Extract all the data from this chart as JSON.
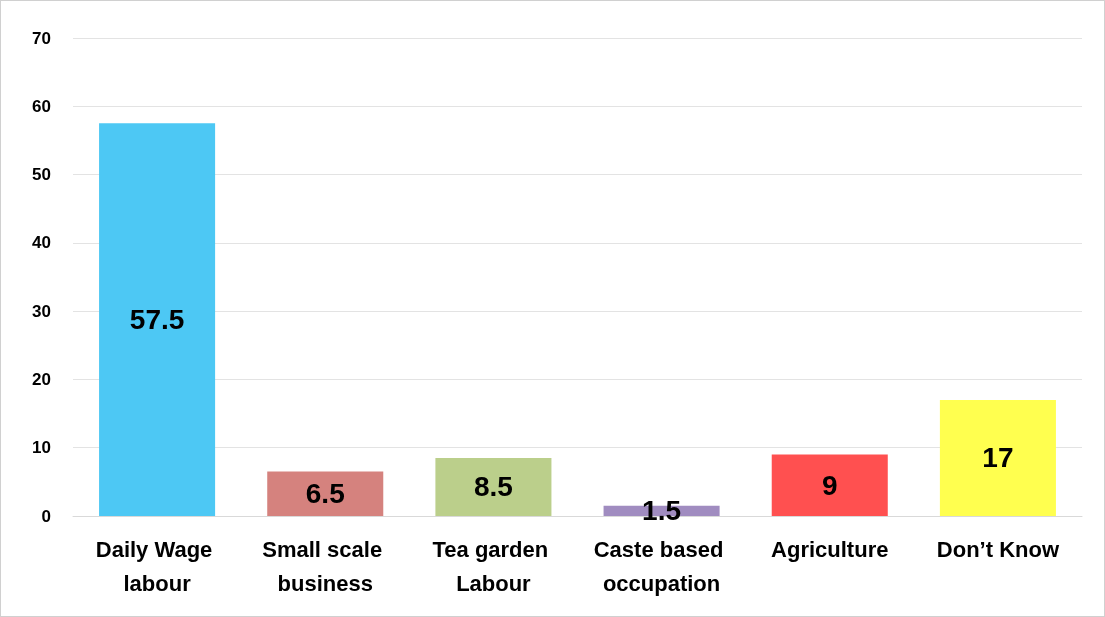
{
  "chart_data": {
    "type": "bar",
    "categories": [
      "Daily Wage labour",
      "Small scale business",
      "Tea garden Labour",
      "Caste based occupation",
      "Agriculture",
      "Don’t Know"
    ],
    "values": [
      57.5,
      6.5,
      8.5,
      1.5,
      9,
      17
    ],
    "colors": [
      "#4dc8f4",
      "#d5827e",
      "#bbcf8b",
      "#a08cc0",
      "#ff5050",
      "#ffff4f"
    ],
    "ylim": [
      0,
      70
    ],
    "yticks": [
      0,
      10,
      20,
      30,
      40,
      50,
      60,
      70
    ],
    "grid": "y",
    "data_labels": true
  }
}
